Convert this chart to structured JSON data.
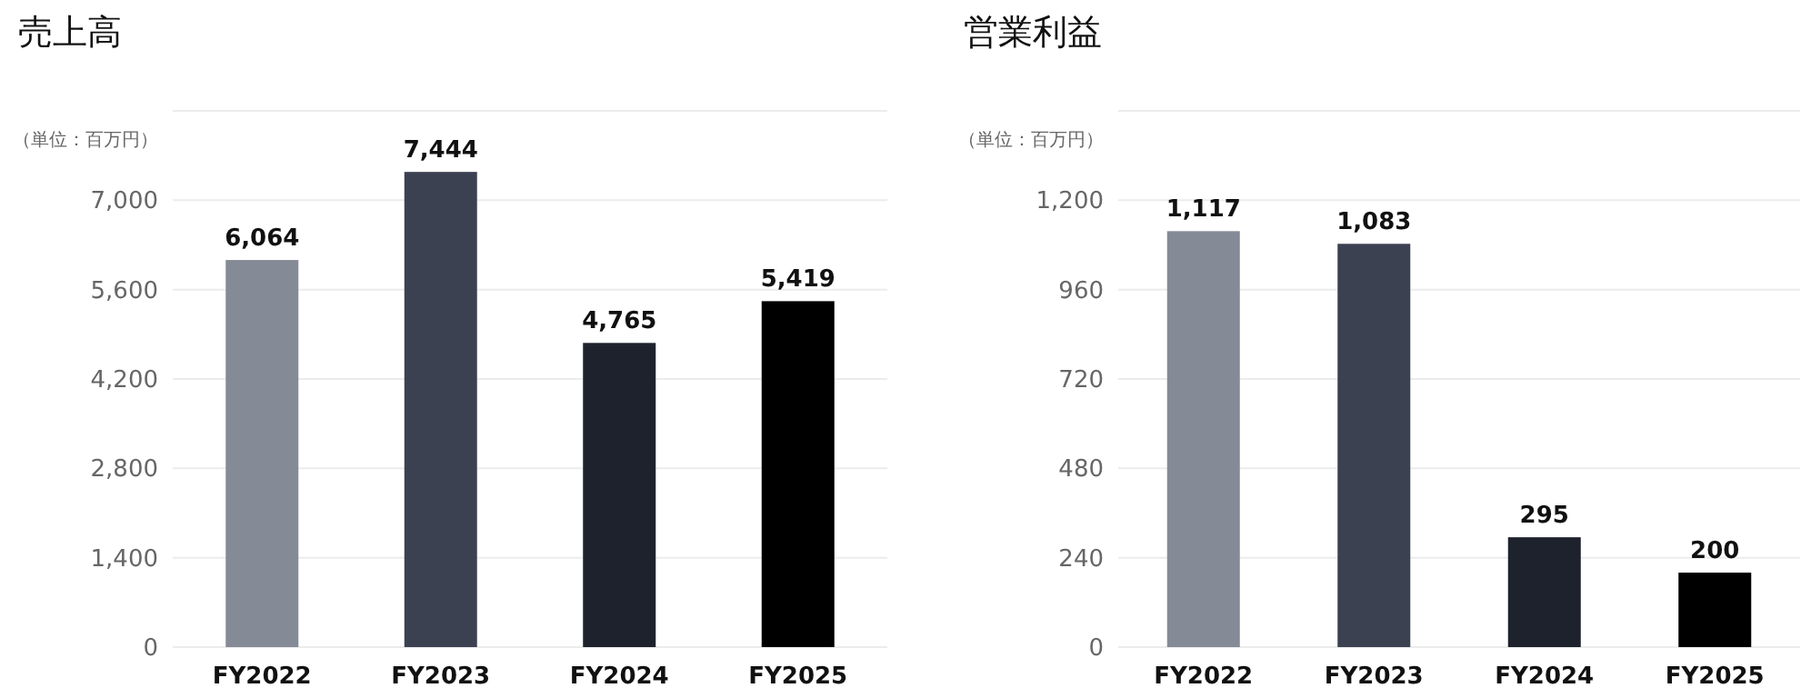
{
  "chart_data": [
    {
      "type": "bar",
      "title": "売上高",
      "ylabel": "（単位：百万円）",
      "categories": [
        "FY2022",
        "FY2023",
        "FY2024",
        "FY2025"
      ],
      "values": [
        6064,
        7444,
        4765,
        5419
      ],
      "colors": [
        "#848a96",
        "#3c4152",
        "#1e222d",
        "#000000"
      ],
      "value_labels": [
        "6,064",
        "7,444",
        "4,765",
        "5,419"
      ],
      "ylim": [
        0,
        8400
      ],
      "yticks": [
        {
          "value": 0,
          "label": "0"
        },
        {
          "value": 1400,
          "label": "1,400"
        },
        {
          "value": 2800,
          "label": "2,800"
        },
        {
          "value": 4200,
          "label": "4,200"
        },
        {
          "value": 5600,
          "label": "5,600"
        },
        {
          "value": 7000,
          "label": "7,000"
        },
        {
          "value": 8400,
          "label": null
        }
      ],
      "grid": "y"
    },
    {
      "type": "bar",
      "title": "営業利益",
      "ylabel": "（単位：百万円）",
      "categories": [
        "FY2022",
        "FY2023",
        "FY2024",
        "FY2025"
      ],
      "values": [
        1117,
        1083,
        295,
        200
      ],
      "colors": [
        "#848a96",
        "#3c4152",
        "#1e222d",
        "#000000"
      ],
      "value_labels": [
        "1,117",
        "1,083",
        "295",
        "200"
      ],
      "ylim": [
        0,
        1440
      ],
      "yticks": [
        0,
        240,
        480,
        720,
        960,
        {
          "value": 1200,
          "label": "1,200"
        },
        {
          "value": 1440,
          "label": null
        }
      ],
      "grid": "y"
    }
  ]
}
